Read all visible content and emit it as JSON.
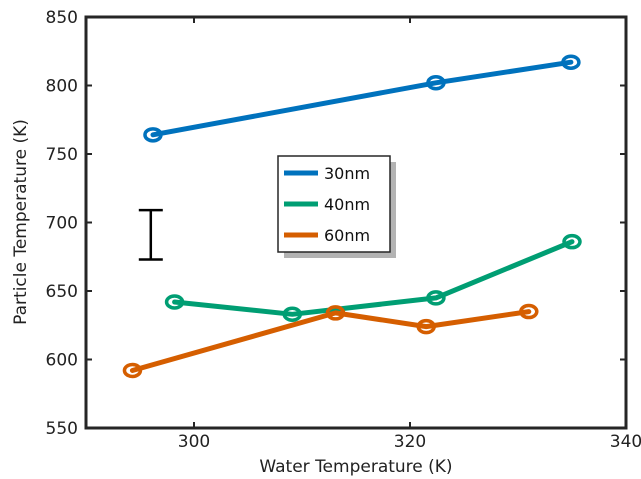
{
  "chart_data": {
    "type": "line",
    "title": "",
    "xlabel": "Water Temperature (K)",
    "ylabel": "Particle Temperature (K)",
    "xlim": [
      290,
      340
    ],
    "ylim": [
      550,
      850
    ],
    "xticks": [
      300,
      320,
      340
    ],
    "yticks": [
      550,
      600,
      650,
      700,
      750,
      800,
      850
    ],
    "grid": false,
    "legend_position": "center",
    "series": [
      {
        "name": "30nm",
        "color": "#0072BD",
        "x": [
          296.2,
          322.4,
          334.9
        ],
        "y": [
          764,
          802,
          817
        ]
      },
      {
        "name": "40nm",
        "color": "#009E73",
        "x": [
          298.2,
          309.1,
          322.4,
          335.0
        ],
        "y": [
          642,
          633,
          645,
          686
        ]
      },
      {
        "name": "60nm",
        "color": "#D55E00",
        "x": [
          294.3,
          313.1,
          321.5,
          331.0
        ],
        "y": [
          592,
          634,
          624,
          635
        ]
      }
    ],
    "error_bar": {
      "x": 296.0,
      "ylow": 673,
      "yhigh": 709,
      "color": "#000000"
    }
  }
}
